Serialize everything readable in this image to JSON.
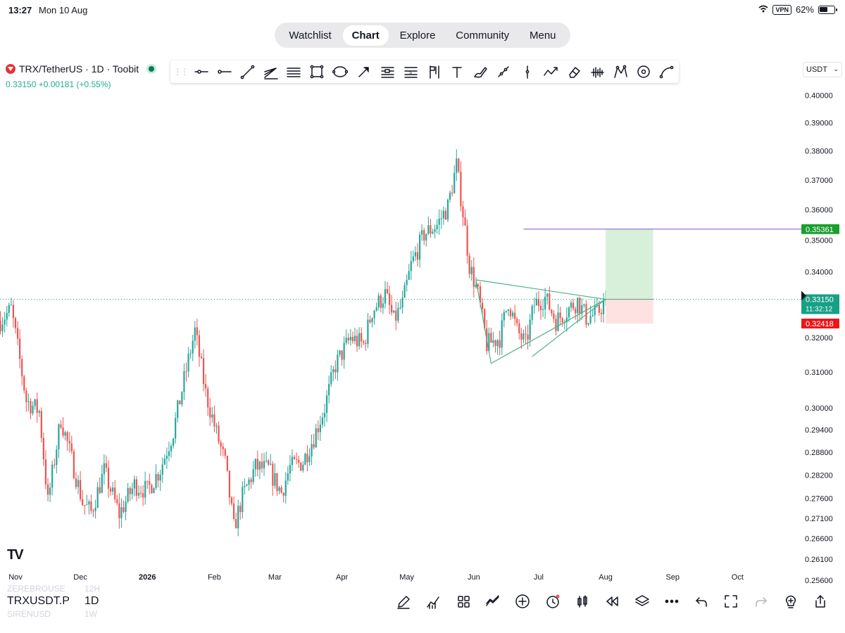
{
  "status_bar": {
    "time": "13:27",
    "date": "Mon 10 Aug",
    "vpn": "VPN",
    "battery": "62%",
    "battery_level": 0.62
  },
  "nav": {
    "tabs": [
      "Watchlist",
      "Chart",
      "Explore",
      "Community",
      "Menu"
    ],
    "active": "Chart"
  },
  "symbol": {
    "title": "TRX/TetherUS · 1D · Toobit",
    "price": "0.33150",
    "change": "+0.00181",
    "change_pct": "(+0.55%)"
  },
  "currency": "USDT",
  "drawing_tools": [
    "horizontal-ray",
    "horizontal-line",
    "trend-line",
    "pitchfork",
    "parallel-channel",
    "rectangle",
    "ellipse",
    "arrow",
    "fib-retracement",
    "fib-extension",
    "long-position",
    "text",
    "brush",
    "path",
    "vertical-line",
    "polyline",
    "eraser",
    "volume-profile",
    "pattern",
    "circle",
    "curve"
  ],
  "bottom_bar": {
    "symbol": "TRXUSDT.P",
    "timeframe": "1D",
    "ghost_top": "ZEREBROUSE",
    "ghost_top_tf": "12H",
    "ghost_bottom": "SIRENUSD",
    "ghost_bottom_tf": "1W",
    "tools": [
      "pencil",
      "chart-type",
      "templates",
      "compare",
      "add",
      "alert",
      "indicators",
      "replay",
      "layers",
      "more",
      "undo",
      "fullscreen",
      "redo",
      "idea",
      "share"
    ]
  },
  "tv_logo": "TV",
  "chart_data": {
    "type": "candlestick",
    "timeframe": "1D",
    "x_ticks": [
      {
        "label": "Nov",
        "day": 7
      },
      {
        "label": "Dec",
        "day": 37
      },
      {
        "label": "2026",
        "day": 68
      },
      {
        "label": "Feb",
        "day": 99
      },
      {
        "label": "Mar",
        "day": 127
      },
      {
        "label": "Apr",
        "day": 158
      },
      {
        "label": "May",
        "day": 188
      },
      {
        "label": "Jun",
        "day": 219
      },
      {
        "label": "Jul",
        "day": 249
      },
      {
        "label": "Aug",
        "day": 280
      },
      {
        "label": "Sep",
        "day": 311
      },
      {
        "label": "Oct",
        "day": 341
      }
    ],
    "y_ticks": [
      "0.40000",
      "0.39000",
      "0.38000",
      "0.37000",
      "0.36000",
      "0.35000",
      "0.34000",
      "0.32000",
      "0.31000",
      "0.30000",
      "0.29400",
      "0.28800",
      "0.28200",
      "0.27600",
      "0.27100",
      "0.26600",
      "0.26100",
      "0.25600"
    ],
    "scale": "log",
    "ylim": [
      0.2535,
      0.404
    ],
    "last_price": "0.33150",
    "countdown": "11:32:12",
    "target_label": "0.35361",
    "stop_label": "0.32418",
    "target": 0.35361,
    "stop": 0.32418,
    "entry": 0.3315,
    "key_points": [
      [
        0,
        0.325
      ],
      [
        5,
        0.3285
      ],
      [
        12,
        0.302
      ],
      [
        18,
        0.299
      ],
      [
        22,
        0.275
      ],
      [
        28,
        0.297
      ],
      [
        38,
        0.275
      ],
      [
        42,
        0.2725
      ],
      [
        48,
        0.283
      ],
      [
        55,
        0.272
      ],
      [
        62,
        0.2795
      ],
      [
        68,
        0.278
      ],
      [
        74,
        0.2835
      ],
      [
        80,
        0.2935
      ],
      [
        90,
        0.322
      ],
      [
        95,
        0.304
      ],
      [
        100,
        0.293
      ],
      [
        104,
        0.285
      ],
      [
        108,
        0.2685
      ],
      [
        112,
        0.2765
      ],
      [
        118,
        0.284
      ],
      [
        124,
        0.2835
      ],
      [
        130,
        0.2775
      ],
      [
        134,
        0.284
      ],
      [
        140,
        0.2855
      ],
      [
        145,
        0.292
      ],
      [
        150,
        0.3
      ],
      [
        155,
        0.312
      ],
      [
        162,
        0.32
      ],
      [
        168,
        0.318
      ],
      [
        172,
        0.328
      ],
      [
        178,
        0.333
      ],
      [
        182,
        0.325
      ],
      [
        186,
        0.33
      ],
      [
        190,
        0.342
      ],
      [
        196,
        0.352
      ],
      [
        202,
        0.355
      ],
      [
        207,
        0.361
      ],
      [
        211,
        0.375
      ],
      [
        214,
        0.359
      ],
      [
        217,
        0.342
      ],
      [
        221,
        0.333
      ],
      [
        225,
        0.318
      ],
      [
        231,
        0.32
      ],
      [
        235,
        0.331
      ],
      [
        239,
        0.322
      ],
      [
        243,
        0.318
      ],
      [
        247,
        0.33
      ],
      [
        252,
        0.332
      ],
      [
        257,
        0.325
      ],
      [
        262,
        0.328
      ],
      [
        267,
        0.331
      ],
      [
        271,
        0.326
      ],
      [
        276,
        0.327
      ],
      [
        280,
        0.3315
      ]
    ],
    "triangle": {
      "upper": [
        [
          220,
          0.3375
        ],
        [
          280,
          0.3315
        ]
      ],
      "lower": [
        [
          227,
          0.3125
        ],
        [
          280,
          0.3315
        ]
      ],
      "left": [
        [
          220,
          0.3375
        ],
        [
          227,
          0.3125
        ]
      ],
      "mid": [
        [
          246,
          0.3145
        ],
        [
          280,
          0.3315
        ]
      ]
    },
    "target_line": {
      "from_day": 242,
      "price": 0.35361
    },
    "position_box": {
      "from_day": 280,
      "to_day": 302
    }
  },
  "colors": {
    "up": "#26a69a",
    "down": "#ef5350",
    "target_bg": "#d8f0da",
    "stop_bg": "#fde2e1",
    "target_label_bg": "#1a9e2f",
    "stop_label_bg": "#e8181a",
    "last_label_bg": "#16a085",
    "triangle": "#4caf8a",
    "target_line": "#7e57c2"
  }
}
